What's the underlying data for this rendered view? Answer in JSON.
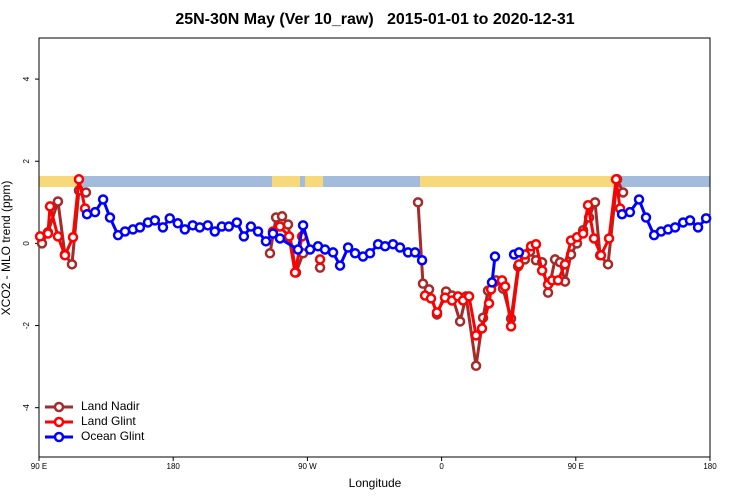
{
  "chart_data": {
    "type": "line",
    "title": "25N-30N May (Ver 10_raw)   2015-01-01 to 2020-12-31",
    "x_label": "Longitude",
    "y_label": "XCO2 - MLO trend (ppm)",
    "xlim": [
      90,
      540
    ],
    "ylim": [
      -5.2,
      5
    ],
    "xticks": [
      {
        "value": 90,
        "label": "90 E"
      },
      180,
      {
        "value": 270,
        "label": "90 W"
      },
      {
        "value": 360,
        "label": "0"
      },
      {
        "value": 450,
        "label": "90 E"
      },
      {
        "value": 540,
        "label": "180"
      }
    ],
    "yticks": [
      -4,
      -2,
      0,
      2,
      4
    ],
    "legend": "bottom-left",
    "series": [
      {
        "name": "Land Nadir",
        "color": "#a52a2a",
        "x": [
          92,
          96,
          102.7,
          107.4,
          112.1,
          116.8,
          121.5,
          null,
          244.9,
          249,
          253,
          257,
          262.4,
          267.1,
          null,
          278.5,
          null,
          344.2,
          347.5,
          351.6,
          356.9,
          363,
          367,
          372.4,
          376.4,
          383.1,
          387.8,
          391.1,
          396.5,
          401.2,
          406.6,
          411.3,
          415.9,
          419.3,
          423.3,
          427.4,
          431.4,
          436.1,
          439.4,
          442.8,
          446.8,
          450.8,
          454.9,
          458.9,
          462.9,
          466.3,
          471.6,
          477.7,
          481.7
        ],
        "values": [
          0,
          0.27,
          1.02,
          -0.27,
          -0.51,
          1.29,
          1.24,
          null,
          -0.24,
          0.63,
          0.66,
          0.46,
          -0.71,
          -0.24,
          null,
          -0.59,
          null,
          1,
          -0.98,
          -1.12,
          -1.73,
          -1.17,
          -1.27,
          -1.9,
          -1.29,
          -2.98,
          -1.81,
          -1.15,
          -0.9,
          -1.1,
          -1.83,
          -0.56,
          -0.39,
          -0.2,
          -0.41,
          -0.46,
          -1.2,
          -0.39,
          -0.46,
          -0.93,
          -0.27,
          0,
          0.32,
          0.63,
          1,
          -0.29,
          -0.51,
          1.56,
          1.24
        ]
      },
      {
        "name": "Land Glint",
        "color": "#ff0000",
        "x": [
          90.7,
          96,
          97.4,
          102.7,
          107.4,
          112.8,
          116.8,
          120.9,
          null,
          246.9,
          251.6,
          257.7,
          261.7,
          266.4,
          null,
          278.5,
          null,
          348.9,
          352.9,
          356.9,
          362.3,
          367,
          371,
          374.4,
          378.4,
          383.1,
          387.1,
          391.8,
          393.2,
          400.5,
          402.6,
          406.6,
          411.9,
          415.9,
          420,
          423.3,
          427.4,
          431.4,
          434.1,
          438.1,
          442.8,
          446.8,
          450.8,
          454.9,
          458.2,
          462.2,
          466.9,
          472.3,
          477,
          479.7
        ],
        "values": [
          0.17,
          0.24,
          0.9,
          0.17,
          -0.29,
          0.15,
          1.56,
          0.85,
          null,
          0.29,
          0.41,
          0.17,
          -0.71,
          0.17,
          null,
          -0.39,
          null,
          -1.27,
          -1.34,
          -1.68,
          -1.32,
          -1.39,
          -1.29,
          -1.39,
          -1.29,
          -2.24,
          -2.07,
          -1.46,
          -1.12,
          -0.9,
          -1.05,
          -2.02,
          -0.51,
          -0.27,
          -0.07,
          -0.02,
          -0.66,
          -1,
          -0.9,
          -0.9,
          -0.51,
          0.07,
          0.15,
          0.24,
          0.93,
          0.12,
          -0.29,
          0.12,
          1.56,
          0.85
        ]
      },
      {
        "name": "Ocean Glint",
        "color": "#0000ff",
        "x": [
          122.2,
          127.6,
          133,
          137.6,
          143,
          147.7,
          153,
          157.7,
          163.1,
          167.7,
          173.1,
          177.7,
          183.1,
          187.8,
          193.1,
          197.8,
          203.2,
          207.9,
          212.6,
          217.3,
          222.7,
          227.4,
          232.1,
          236.9,
          242.2,
          246.9,
          251.6,
          263.7,
          267.1,
          271.8,
          277.1,
          281.8,
          287.2,
          291.9,
          297.3,
          302,
          307.3,
          312,
          317.4,
          322.1,
          327.4,
          332.1,
          337.5,
          342.2,
          346.9,
          null,
          393.8,
          395.8,
          null,
          408.6,
          411.9,
          null,
          481,
          486.3,
          492.4,
          497.1,
          502.5,
          507.2,
          511.9,
          516.6,
          522,
          526.6,
          532,
          537.4
        ],
        "values": [
          0.71,
          0.76,
          1.07,
          0.63,
          0.2,
          0.29,
          0.34,
          0.39,
          0.51,
          0.56,
          0.39,
          0.61,
          0.49,
          0.34,
          0.44,
          0.39,
          0.44,
          0.29,
          0.41,
          0.41,
          0.51,
          0.17,
          0.41,
          0.29,
          0.05,
          0.24,
          0.12,
          -0.15,
          0.44,
          -0.15,
          -0.07,
          -0.15,
          -0.22,
          -0.54,
          -0.1,
          -0.24,
          -0.32,
          -0.24,
          -0.02,
          -0.07,
          -0.02,
          -0.1,
          -0.22,
          -0.22,
          -0.41,
          null,
          -0.95,
          -0.32,
          null,
          -0.27,
          -0.22,
          null,
          0.71,
          0.76,
          1.07,
          0.63,
          0.2,
          0.29,
          0.34,
          0.39,
          0.51,
          0.56,
          0.39,
          0.61
        ]
      }
    ]
  }
}
